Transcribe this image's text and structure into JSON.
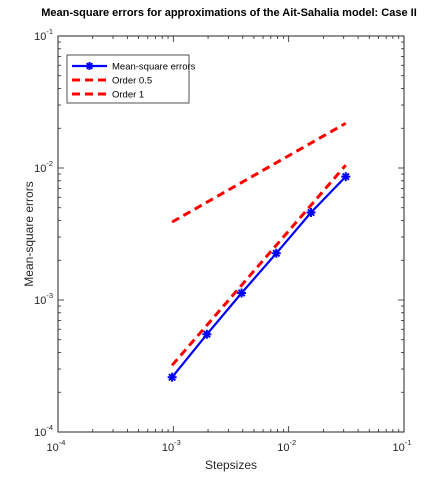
{
  "chart_data": {
    "type": "line",
    "title": "Mean-square errors for approximations of the Ait-Sahalia model: Case II",
    "xlabel": "Stepsizes",
    "ylabel": "Mean-square errors",
    "xscale": "log",
    "yscale": "log",
    "xlim": [
      0.0001,
      0.1
    ],
    "ylim": [
      0.0001,
      0.1
    ],
    "xticks": [
      {
        "base": "10",
        "exp": "-4"
      },
      {
        "base": "10",
        "exp": "-3"
      },
      {
        "base": "10",
        "exp": "-2"
      },
      {
        "base": "10",
        "exp": "-1"
      }
    ],
    "yticks": [
      {
        "base": "10",
        "exp": "-4"
      },
      {
        "base": "10",
        "exp": "-3"
      },
      {
        "base": "10",
        "exp": "-2"
      },
      {
        "base": "10",
        "exp": "-1"
      }
    ],
    "grid": false,
    "legend_position": "top-left",
    "series": [
      {
        "name": "Mean-square errors",
        "color": "#0000ff",
        "style": "solid",
        "marker": "asterisk",
        "x": [
          0.0009766,
          0.0019531,
          0.0039063,
          0.0078125,
          0.015625,
          0.03125
        ],
        "y": [
          0.00026,
          0.00055,
          0.00113,
          0.00226,
          0.0046,
          0.0086
        ]
      },
      {
        "name": "Order 0.5",
        "color": "#ff0000",
        "style": "dashed",
        "marker": "none",
        "x": [
          0.0009766,
          0.03125
        ],
        "y": [
          0.0039,
          0.0218
        ]
      },
      {
        "name": "Order 1",
        "color": "#ff0000",
        "style": "dashed",
        "marker": "none",
        "x": [
          0.0009766,
          0.03125
        ],
        "y": [
          0.00032,
          0.0105
        ]
      }
    ]
  }
}
